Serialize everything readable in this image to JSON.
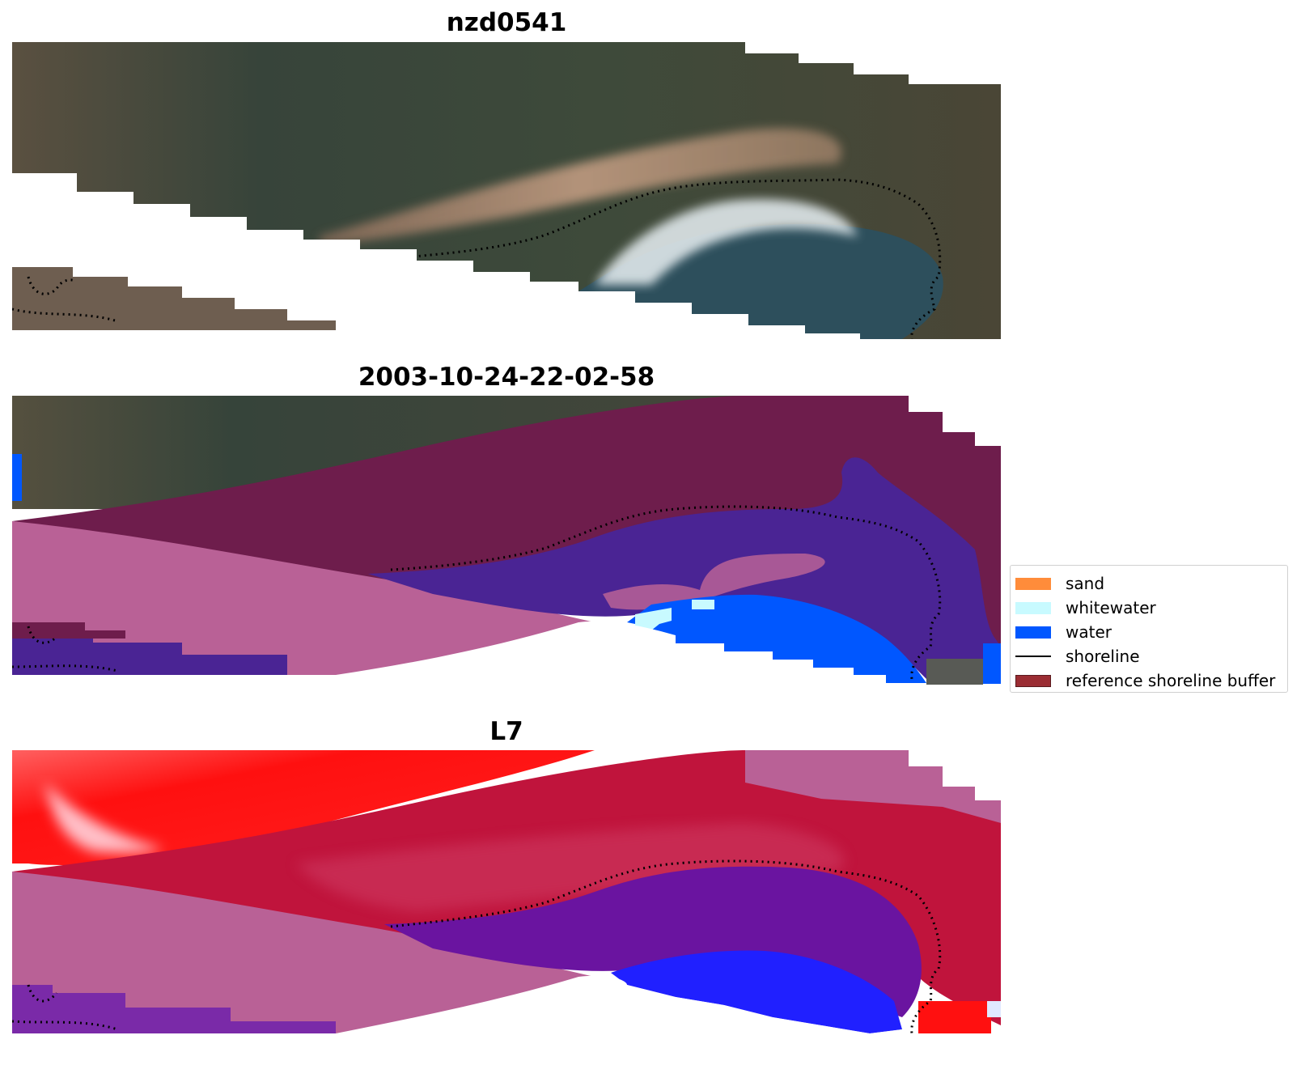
{
  "panels": [
    {
      "title": "nzd0541"
    },
    {
      "title": "2003-10-24-22-02-58"
    },
    {
      "title": "L7"
    }
  ],
  "legend": {
    "items": [
      {
        "label": "sand",
        "type": "patch",
        "color": "#ff8c3a"
      },
      {
        "label": "whitewater",
        "type": "patch",
        "color": "#c8faff"
      },
      {
        "label": "water",
        "type": "patch",
        "color": "#0057ff"
      },
      {
        "label": "shoreline",
        "type": "line",
        "color": "#000000"
      },
      {
        "label": "reference shoreline buffer",
        "type": "patch",
        "color": "#9b2d33"
      }
    ]
  },
  "colors": {
    "land": "#3b4a36",
    "beach_sand": "#b08a6e",
    "shallow_water": "#2f4e55",
    "whitewater_foam": "#e8eef0",
    "buffer_overlay": "#b96196",
    "dark_buffer": "#6e1d4c",
    "class_water": "#4a2494",
    "index_red": "#ff1010",
    "index_crimson": "#c0143c",
    "index_purple": "#6a14a0",
    "index_blue": "#2020ff"
  }
}
